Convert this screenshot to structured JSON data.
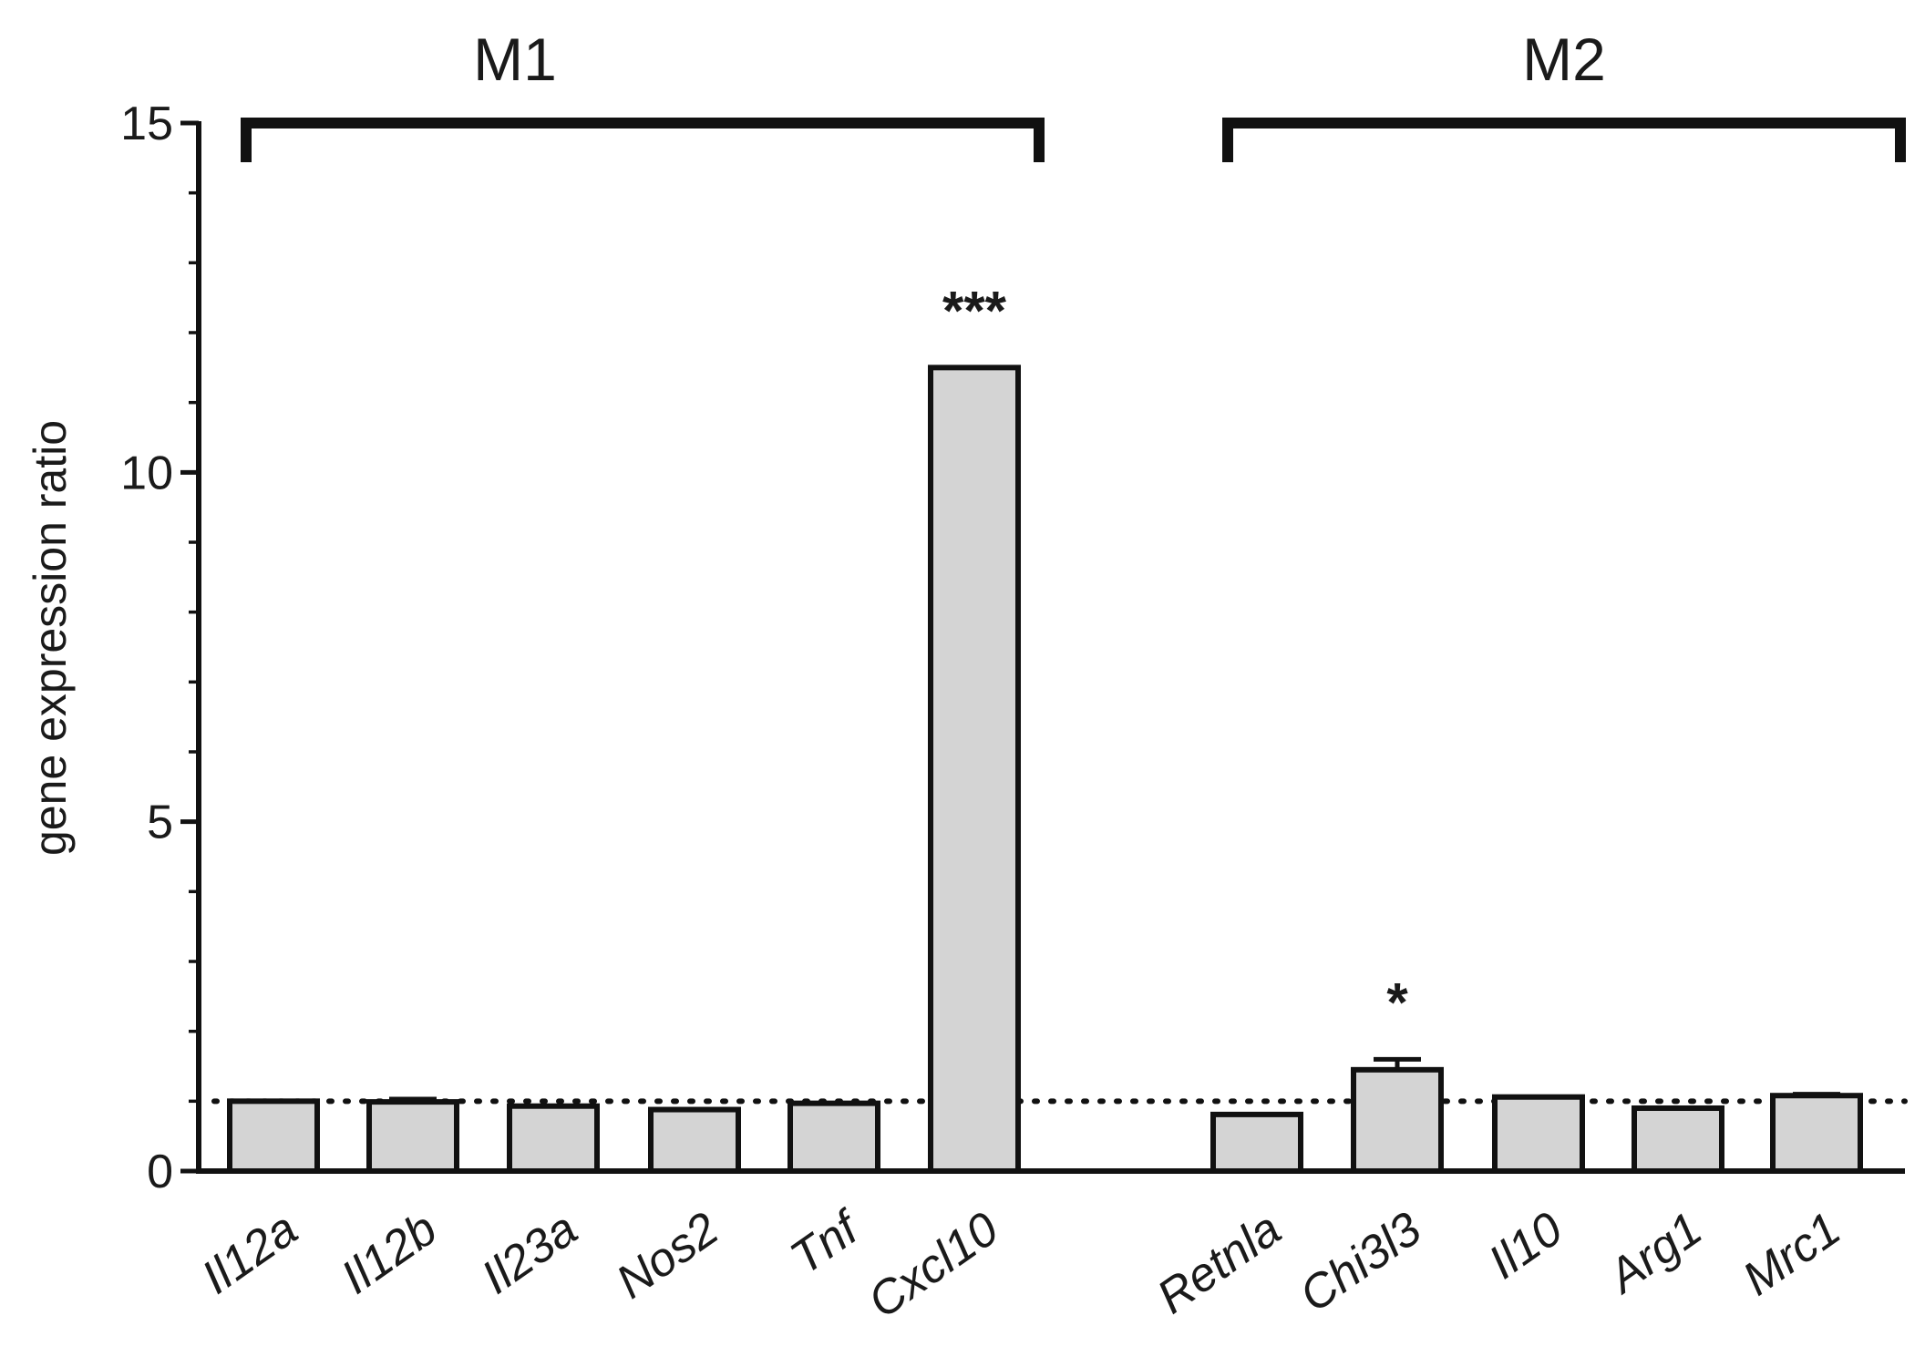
{
  "chart_data": {
    "type": "bar",
    "ylabel": "gene expression ratio",
    "ylim": [
      0,
      15
    ],
    "yticks": [
      0,
      5,
      10,
      15
    ],
    "reference_line": 1,
    "groups": [
      {
        "label": "M1",
        "categories": [
          "Il12a",
          "Il12b",
          "Il23a",
          "Nos2",
          "Tnf",
          "Cxcl10"
        ],
        "values": [
          1.0,
          0.99,
          0.93,
          0.88,
          0.97,
          11.5
        ],
        "errors": [
          0,
          0.04,
          0,
          0,
          0,
          0
        ],
        "significance": [
          "",
          "",
          "",
          "",
          "",
          "***"
        ]
      },
      {
        "label": "M2",
        "categories": [
          "Retnla",
          "Chi3l3",
          "Il10",
          "Arg1",
          "Mrc1"
        ],
        "values": [
          0.81,
          1.45,
          1.06,
          0.9,
          1.08
        ],
        "errors": [
          0,
          0.15,
          0,
          0,
          0.02
        ],
        "significance": [
          "",
          "*",
          "",
          "",
          ""
        ]
      }
    ],
    "colors": {
      "bar_fill": "#d4d4d4",
      "stroke": "#111111"
    }
  }
}
